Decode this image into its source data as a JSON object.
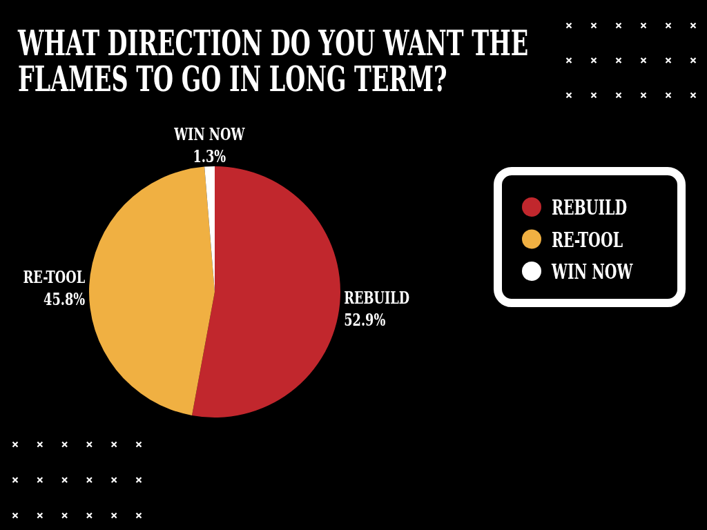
{
  "chart_data": {
    "type": "pie",
    "title": "WHAT DIRECTION DO YOU WANT THE FLAMES TO GO IN LONG TERM?",
    "categories": [
      "REBUILD",
      "RE-TOOL",
      "WIN NOW"
    ],
    "values": [
      52.9,
      45.8,
      1.3
    ],
    "colors": [
      "#c1272d",
      "#f0b042",
      "#ffffff"
    ],
    "value_labels": [
      "52.9%",
      "45.8%",
      "1.3%"
    ],
    "legend": "right"
  }
}
